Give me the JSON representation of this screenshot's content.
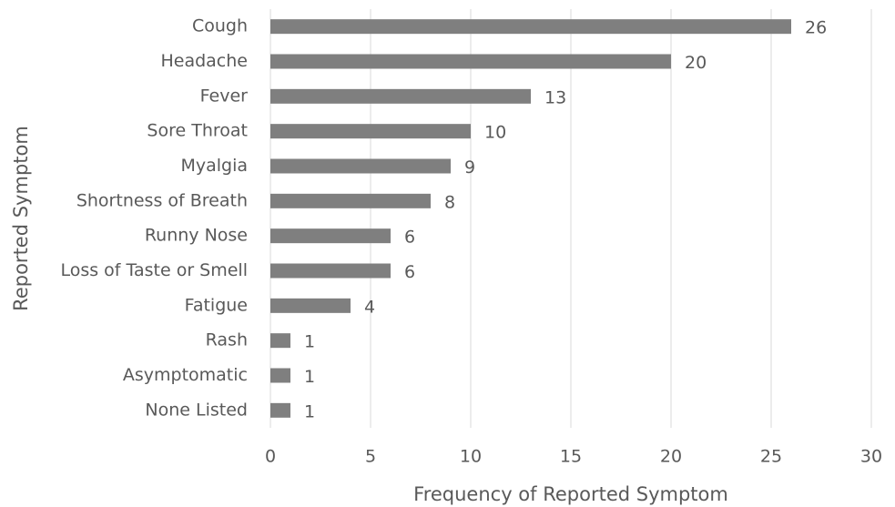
{
  "chart_data": {
    "type": "bar",
    "orientation": "horizontal",
    "x_label": "Frequency of Reported Symptom",
    "y_label": "Reported Symptom",
    "categories": [
      "Cough",
      "Headache",
      "Fever",
      "Sore Throat",
      "Myalgia",
      "Shortness of Breath",
      "Runny Nose",
      "Loss of Taste or Smell",
      "Fatigue",
      "Rash",
      "Asymptomatic",
      "None Listed"
    ],
    "values": [
      26,
      20,
      13,
      10,
      9,
      8,
      6,
      6,
      4,
      1,
      1,
      1
    ],
    "color": "#7f7f7f",
    "xlim": [
      0,
      30
    ],
    "xticks": [
      0,
      5,
      10,
      15,
      20,
      25,
      30
    ],
    "grid": true
  }
}
